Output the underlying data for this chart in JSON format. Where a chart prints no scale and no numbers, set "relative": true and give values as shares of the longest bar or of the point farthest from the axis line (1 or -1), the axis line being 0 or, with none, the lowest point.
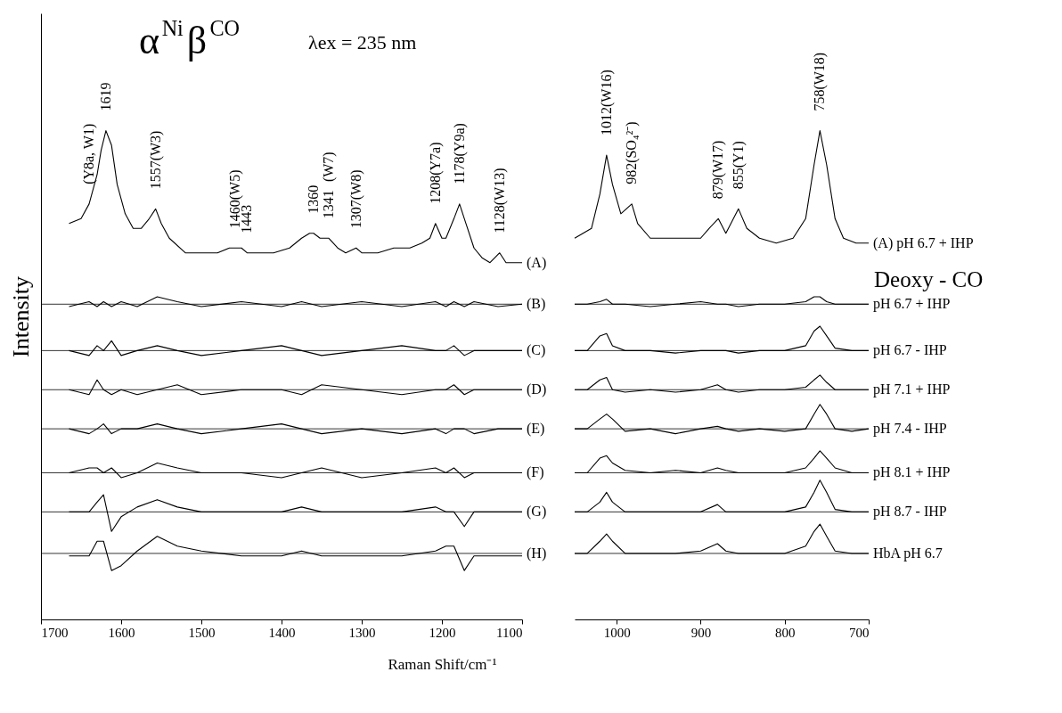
{
  "chart_data": [
    {
      "type": "line",
      "relative": true,
      "title": "α$^{Ni}$β$^{CO}$",
      "subtitle": "λex = 235 nm",
      "xlabel": "Raman Shift/cm⁻¹",
      "ylabel": "Intensity",
      "xlim": [
        1700,
        1100
      ],
      "xticks": [
        1700,
        1600,
        1500,
        1400,
        1300,
        1200,
        1100
      ],
      "series": [
        {
          "color": "#000000",
          "x": [
            1665,
            1650,
            1640,
            1630,
            1625,
            1619,
            1612,
            1605,
            1595,
            1585,
            1575,
            1565,
            1557,
            1550,
            1540,
            1520,
            1500,
            1480,
            1465,
            1458,
            1450,
            1443,
            1430,
            1410,
            1390,
            1375,
            1365,
            1360,
            1352,
            1345,
            1341,
            1330,
            1320,
            1307,
            1300,
            1280,
            1260,
            1240,
            1225,
            1215,
            1208,
            1200,
            1195,
            1185,
            1178,
            1170,
            1160,
            1150,
            1140,
            1128,
            1120,
            1100
          ],
          "values": [
            0.81,
            0.82,
            0.85,
            0.91,
            0.96,
            1.0,
            0.97,
            0.89,
            0.83,
            0.8,
            0.8,
            0.82,
            0.84,
            0.81,
            0.78,
            0.75,
            0.75,
            0.75,
            0.76,
            0.76,
            0.76,
            0.75,
            0.75,
            0.75,
            0.76,
            0.78,
            0.79,
            0.79,
            0.78,
            0.78,
            0.78,
            0.76,
            0.75,
            0.76,
            0.75,
            0.75,
            0.76,
            0.76,
            0.77,
            0.78,
            0.81,
            0.78,
            0.78,
            0.82,
            0.85,
            0.81,
            0.76,
            0.74,
            0.73,
            0.75,
            0.73,
            0.73
          ]
        },
        {
          "color": "#000000",
          "x": [
            1665,
            1640,
            1630,
            1622,
            1612,
            1600,
            1580,
            1555,
            1530,
            1500,
            1450,
            1400,
            1375,
            1350,
            1300,
            1250,
            1208,
            1195,
            1185,
            1172,
            1160,
            1130,
            1100
          ],
          "values": [
            0.64,
            0.65,
            0.64,
            0.65,
            0.64,
            0.65,
            0.64,
            0.66,
            0.65,
            0.64,
            0.65,
            0.64,
            0.65,
            0.64,
            0.65,
            0.64,
            0.65,
            0.64,
            0.65,
            0.64,
            0.65,
            0.64,
            0.645
          ]
        },
        {
          "color": "#000000",
          "x": [
            1665,
            1640,
            1630,
            1622,
            1612,
            1600,
            1580,
            1555,
            1530,
            1500,
            1450,
            1400,
            1375,
            1350,
            1300,
            1250,
            1208,
            1195,
            1185,
            1172,
            1160,
            1130,
            1100
          ],
          "values": [
            0.55,
            0.54,
            0.56,
            0.55,
            0.57,
            0.54,
            0.55,
            0.56,
            0.55,
            0.54,
            0.55,
            0.56,
            0.55,
            0.54,
            0.55,
            0.56,
            0.55,
            0.55,
            0.56,
            0.54,
            0.55,
            0.55,
            0.55
          ]
        },
        {
          "color": "#000000",
          "x": [
            1665,
            1640,
            1630,
            1622,
            1612,
            1600,
            1580,
            1555,
            1530,
            1500,
            1450,
            1400,
            1375,
            1350,
            1300,
            1250,
            1208,
            1195,
            1185,
            1172,
            1160,
            1130,
            1100
          ],
          "values": [
            0.47,
            0.46,
            0.49,
            0.47,
            0.46,
            0.47,
            0.46,
            0.47,
            0.48,
            0.46,
            0.47,
            0.47,
            0.46,
            0.48,
            0.47,
            0.46,
            0.47,
            0.47,
            0.48,
            0.46,
            0.47,
            0.47,
            0.47
          ]
        },
        {
          "color": "#000000",
          "x": [
            1665,
            1640,
            1630,
            1622,
            1612,
            1600,
            1580,
            1555,
            1530,
            1500,
            1450,
            1400,
            1375,
            1350,
            1300,
            1250,
            1208,
            1195,
            1185,
            1172,
            1160,
            1130,
            1100
          ],
          "values": [
            0.39,
            0.38,
            0.39,
            0.4,
            0.38,
            0.39,
            0.39,
            0.4,
            0.39,
            0.38,
            0.39,
            0.4,
            0.39,
            0.38,
            0.39,
            0.38,
            0.39,
            0.38,
            0.39,
            0.39,
            0.38,
            0.39,
            0.39
          ]
        },
        {
          "color": "#000000",
          "x": [
            1665,
            1640,
            1630,
            1622,
            1612,
            1600,
            1580,
            1555,
            1530,
            1500,
            1450,
            1400,
            1375,
            1350,
            1300,
            1250,
            1208,
            1195,
            1185,
            1172,
            1160,
            1130,
            1100
          ],
          "values": [
            0.3,
            0.31,
            0.31,
            0.3,
            0.31,
            0.29,
            0.3,
            0.32,
            0.31,
            0.3,
            0.3,
            0.29,
            0.3,
            0.31,
            0.29,
            0.3,
            0.31,
            0.3,
            0.31,
            0.29,
            0.3,
            0.3,
            0.3
          ]
        },
        {
          "color": "#000000",
          "x": [
            1665,
            1640,
            1630,
            1622,
            1612,
            1600,
            1580,
            1555,
            1530,
            1500,
            1450,
            1400,
            1375,
            1350,
            1300,
            1250,
            1208,
            1195,
            1185,
            1172,
            1160,
            1130,
            1100
          ],
          "values": [
            0.22,
            0.22,
            0.24,
            0.255,
            0.18,
            0.21,
            0.23,
            0.245,
            0.23,
            0.22,
            0.22,
            0.22,
            0.23,
            0.22,
            0.22,
            0.22,
            0.23,
            0.22,
            0.22,
            0.19,
            0.22,
            0.22,
            0.22
          ]
        },
        {
          "color": "#000000",
          "x": [
            1665,
            1640,
            1630,
            1622,
            1612,
            1600,
            1580,
            1555,
            1530,
            1500,
            1450,
            1400,
            1375,
            1350,
            1300,
            1250,
            1208,
            1195,
            1185,
            1172,
            1160,
            1130,
            1100
          ],
          "values": [
            0.13,
            0.13,
            0.16,
            0.16,
            0.1,
            0.11,
            0.14,
            0.17,
            0.15,
            0.14,
            0.13,
            0.13,
            0.14,
            0.13,
            0.13,
            0.13,
            0.14,
            0.15,
            0.15,
            0.1,
            0.13,
            0.13,
            0.13
          ]
        }
      ],
      "ref_lines": [
        {
          "axis": "y",
          "value": 0.645
        },
        {
          "axis": "y",
          "value": 0.55
        },
        {
          "axis": "y",
          "value": 0.47
        },
        {
          "axis": "y",
          "value": 0.39
        },
        {
          "axis": "y",
          "value": 0.3
        },
        {
          "axis": "y",
          "value": 0.22
        },
        {
          "axis": "y",
          "value": 0.135
        }
      ],
      "annotations": [
        {
          "text": "(Y8a, W1)",
          "x": 1640,
          "y": 0.85
        },
        {
          "text": "1619",
          "x": 1619,
          "y": 1.0
        },
        {
          "text": "1557(W3)",
          "x": 1557,
          "y": 0.84
        },
        {
          "text": "1460(W5)",
          "x": 1458,
          "y": 0.76
        },
        {
          "text": "1443",
          "x": 1443,
          "y": 0.75
        },
        {
          "text": "1360",
          "x": 1360,
          "y": 0.79
        },
        {
          "text": "1341",
          "x": 1341,
          "y": 0.78
        },
        "(W7)",
        {
          "text": "1307(W8)",
          "x": 1307,
          "y": 0.76
        },
        {
          "text": "1208(Y7a)",
          "x": 1208,
          "y": 0.81
        },
        {
          "text": "1178(Y9a)",
          "x": 1178,
          "y": 0.85
        },
        {
          "text": "1128(W13)",
          "x": 1128,
          "y": 0.75
        },
        {
          "text": "(A)",
          "x": 1100,
          "y": 0.73
        },
        {
          "text": "(B)",
          "x": 1100,
          "y": 0.645
        },
        {
          "text": "(C)",
          "x": 1100,
          "y": 0.55
        },
        {
          "text": "(D)",
          "x": 1100,
          "y": 0.47
        },
        {
          "text": "(E)",
          "x": 1100,
          "y": 0.39
        },
        {
          "text": "(F)",
          "x": 1100,
          "y": 0.3
        },
        {
          "text": "(G)",
          "x": 1100,
          "y": 0.22
        },
        {
          "text": "(H)",
          "x": 1100,
          "y": 0.135
        }
      ]
    },
    {
      "type": "line",
      "relative": true,
      "xlim": [
        1050,
        700
      ],
      "xticks": [
        1000,
        900,
        800,
        700
      ],
      "series": [
        {
          "color": "#000000",
          "x": [
            1050,
            1040,
            1030,
            1020,
            1012,
            1005,
            995,
            982,
            975,
            960,
            940,
            920,
            900,
            890,
            879,
            870,
            855,
            845,
            830,
            810,
            790,
            775,
            765,
            758,
            750,
            740,
            730,
            715,
            700
          ],
          "values": [
            0.78,
            0.79,
            0.8,
            0.87,
            0.95,
            0.89,
            0.83,
            0.85,
            0.81,
            0.78,
            0.78,
            0.78,
            0.78,
            0.8,
            0.82,
            0.79,
            0.84,
            0.8,
            0.78,
            0.77,
            0.78,
            0.82,
            0.93,
            1.0,
            0.93,
            0.82,
            0.78,
            0.77,
            0.77
          ]
        },
        {
          "color": "#000000",
          "x": [
            1050,
            1035,
            1020,
            1012,
            1005,
            990,
            960,
            930,
            900,
            880,
            870,
            855,
            830,
            800,
            775,
            765,
            758,
            750,
            740,
            720,
            700
          ],
          "values": [
            0.645,
            0.645,
            0.65,
            0.655,
            0.645,
            0.645,
            0.64,
            0.645,
            0.65,
            0.645,
            0.645,
            0.64,
            0.645,
            0.645,
            0.65,
            0.66,
            0.66,
            0.65,
            0.645,
            0.645,
            0.645
          ]
        },
        {
          "color": "#000000",
          "x": [
            1050,
            1035,
            1020,
            1012,
            1005,
            990,
            960,
            930,
            900,
            880,
            870,
            855,
            830,
            800,
            775,
            765,
            758,
            750,
            740,
            720,
            700
          ],
          "values": [
            0.55,
            0.55,
            0.58,
            0.585,
            0.56,
            0.55,
            0.55,
            0.545,
            0.55,
            0.55,
            0.55,
            0.545,
            0.55,
            0.55,
            0.56,
            0.59,
            0.6,
            0.58,
            0.555,
            0.55,
            0.55
          ]
        },
        {
          "color": "#000000",
          "x": [
            1050,
            1035,
            1020,
            1012,
            1005,
            990,
            960,
            930,
            900,
            880,
            870,
            855,
            830,
            800,
            775,
            765,
            758,
            750,
            740,
            720,
            700
          ],
          "values": [
            0.47,
            0.47,
            0.49,
            0.495,
            0.47,
            0.465,
            0.47,
            0.465,
            0.47,
            0.48,
            0.47,
            0.465,
            0.47,
            0.47,
            0.475,
            0.49,
            0.5,
            0.485,
            0.47,
            0.47,
            0.47
          ]
        },
        {
          "color": "#000000",
          "x": [
            1050,
            1035,
            1020,
            1012,
            1005,
            990,
            960,
            930,
            900,
            880,
            870,
            855,
            830,
            800,
            775,
            765,
            758,
            750,
            740,
            720,
            700
          ],
          "values": [
            0.39,
            0.39,
            0.41,
            0.42,
            0.41,
            0.385,
            0.39,
            0.38,
            0.39,
            0.395,
            0.39,
            0.385,
            0.39,
            0.385,
            0.39,
            0.42,
            0.44,
            0.42,
            0.39,
            0.385,
            0.39
          ]
        },
        {
          "color": "#000000",
          "x": [
            1050,
            1035,
            1020,
            1012,
            1005,
            990,
            960,
            930,
            900,
            880,
            870,
            855,
            830,
            800,
            775,
            765,
            758,
            750,
            740,
            720,
            700
          ],
          "values": [
            0.3,
            0.3,
            0.33,
            0.335,
            0.32,
            0.305,
            0.3,
            0.305,
            0.3,
            0.31,
            0.305,
            0.3,
            0.3,
            0.3,
            0.31,
            0.33,
            0.345,
            0.33,
            0.31,
            0.3,
            0.3
          ]
        },
        {
          "color": "#000000",
          "x": [
            1050,
            1035,
            1020,
            1012,
            1005,
            990,
            960,
            930,
            900,
            880,
            870,
            855,
            830,
            800,
            775,
            765,
            758,
            750,
            740,
            720,
            700
          ],
          "values": [
            0.22,
            0.22,
            0.24,
            0.26,
            0.24,
            0.22,
            0.22,
            0.22,
            0.22,
            0.235,
            0.22,
            0.22,
            0.22,
            0.22,
            0.23,
            0.26,
            0.285,
            0.26,
            0.225,
            0.22,
            0.22
          ]
        },
        {
          "color": "#000000",
          "x": [
            1050,
            1035,
            1020,
            1012,
            1005,
            990,
            960,
            930,
            900,
            880,
            870,
            855,
            830,
            800,
            775,
            765,
            758,
            750,
            740,
            720,
            700
          ],
          "values": [
            0.135,
            0.135,
            0.16,
            0.175,
            0.16,
            0.135,
            0.135,
            0.135,
            0.14,
            0.155,
            0.14,
            0.135,
            0.135,
            0.135,
            0.15,
            0.18,
            0.195,
            0.17,
            0.14,
            0.135,
            0.135
          ]
        }
      ],
      "ref_lines": [
        {
          "axis": "y",
          "value": 0.645
        },
        {
          "axis": "y",
          "value": 0.55
        },
        {
          "axis": "y",
          "value": 0.47
        },
        {
          "axis": "y",
          "value": 0.39
        },
        {
          "axis": "y",
          "value": 0.3
        },
        {
          "axis": "y",
          "value": 0.22
        },
        {
          "axis": "y",
          "value": 0.135
        }
      ],
      "annotations": [
        {
          "text": "1012(W16)",
          "x": 1012,
          "y": 0.95
        },
        {
          "text": "982(SO₄²⁻)",
          "x": 982,
          "y": 0.85
        },
        {
          "text": "879(W17)",
          "x": 879,
          "y": 0.82
        },
        {
          "text": "855(Y1)",
          "x": 855,
          "y": 0.84
        },
        {
          "text": "758(W18)",
          "x": 758,
          "y": 1.0
        },
        {
          "text": "(A) pH 6.7 + IHP",
          "x": 700,
          "y": 0.77
        },
        "Deoxy - CO",
        {
          "text": "pH 6.7 + IHP",
          "x": 700,
          "y": 0.645
        },
        {
          "text": "pH 6.7 - IHP",
          "x": 700,
          "y": 0.55
        },
        {
          "text": "pH 7.1 + IHP",
          "x": 700,
          "y": 0.47
        },
        {
          "text": "pH 7.4 - IHP",
          "x": 700,
          "y": 0.39
        },
        {
          "text": "pH 8.1 + IHP",
          "x": 700,
          "y": 0.3
        },
        {
          "text": "pH 8.7 - IHP",
          "x": 700,
          "y": 0.22
        },
        {
          "text": "HbA pH 6.7",
          "x": 700,
          "y": 0.135
        }
      ]
    }
  ]
}
